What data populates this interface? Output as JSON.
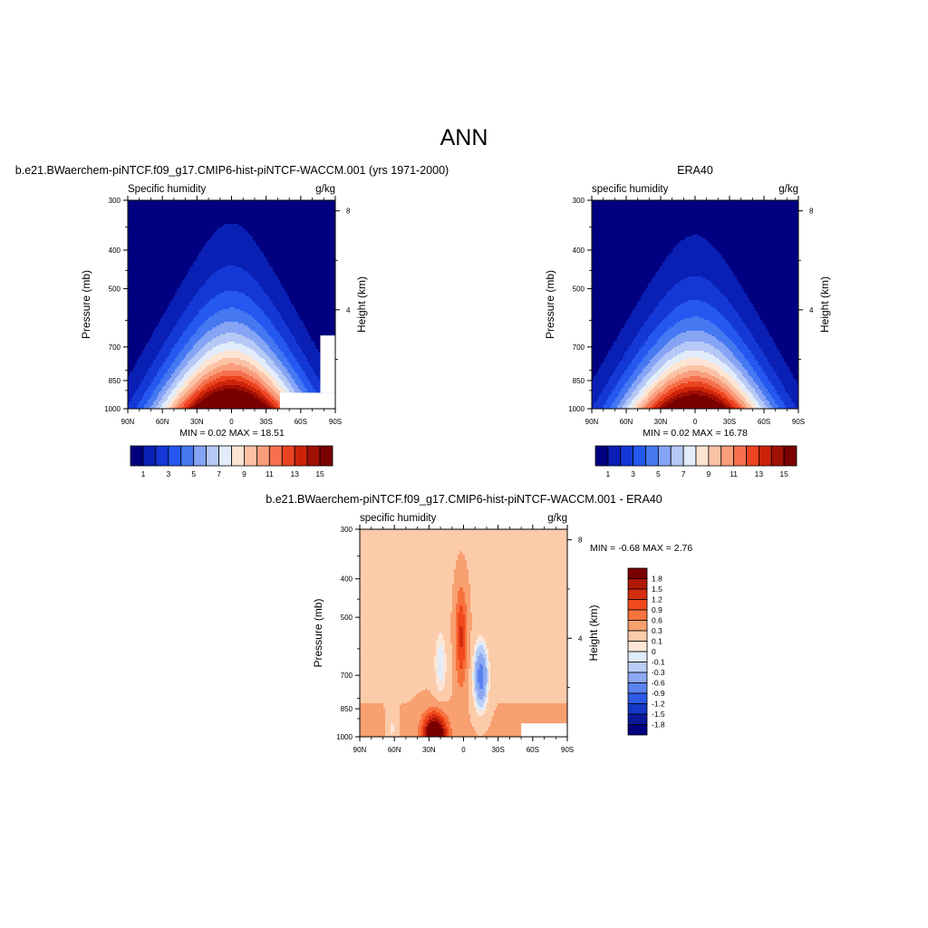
{
  "main_title": "ANN",
  "panels": [
    {
      "title": "b.e21.BWaerchem-piNTCF.f09_g17.CMIP6-hist-piNTCF-WACCM.001 (yrs 1971-2000)",
      "left_label": "Specific humidity",
      "right_label": "g/kg",
      "minmax": "MIN =   0.02  MAX =  18.51"
    },
    {
      "title": "ERA40",
      "left_label": "specific humidity",
      "right_label": "g/kg",
      "minmax": "MIN =   0.02  MAX =  16.78"
    },
    {
      "title": "b.e21.BWaerchem-piNTCF.f09_g17.CMIP6-hist-piNTCF-WACCM.001 - ERA40",
      "left_label": "specific humidity",
      "right_label": "g/kg",
      "minmax": "MIN =  -0.68  MAX =   2.76"
    }
  ],
  "axes": {
    "ylabel": "Pressure (mb)",
    "ylabel_right": "Height (km)",
    "pressure_ticks": [
      "300",
      "400",
      "500",
      "700",
      "850",
      "1000"
    ],
    "height_ticks": [
      "8",
      "4"
    ],
    "lat_ticks": [
      "90N",
      "60N",
      "30N",
      "0",
      "30S",
      "60S",
      "90S"
    ]
  },
  "colorbars": {
    "abs_labels": [
      "1",
      "3",
      "5",
      "7",
      "9",
      "11",
      "13",
      "15"
    ],
    "diff_labels": [
      "1.8",
      "1.5",
      "1.2",
      "0.9",
      "0.6",
      "0.3",
      "0.1",
      "0",
      "-0.1",
      "-0.3",
      "-0.6",
      "-0.9",
      "-1.2",
      "-1.5",
      "-1.8"
    ]
  },
  "colors": {
    "abs_scale": [
      "#000080",
      "#0a1fb4",
      "#1438d6",
      "#2458f0",
      "#4678f2",
      "#86a4f4",
      "#b6c8f6",
      "#e2ecfa",
      "#fde4d2",
      "#fbc2a6",
      "#f89e7c",
      "#f6704e",
      "#ec4420",
      "#cc240a",
      "#a01004",
      "#7a0000"
    ],
    "diff_scale": [
      "#7a0000",
      "#b01808",
      "#d42c10",
      "#f04a1c",
      "#f8723e",
      "#f8a070",
      "#fccbaa",
      "#fde6d6",
      "#e0ecfa",
      "#b8cdf6",
      "#8ca8f2",
      "#5a82ee",
      "#2e5ae6",
      "#1438c8",
      "#0a1a9a",
      "#000080"
    ]
  },
  "chart_data": [
    {
      "type": "heatmap",
      "title": "b.e21.BWaerchem-piNTCF.f09_g17.CMIP6-hist-piNTCF-WACCM.001 (yrs 1971-2000)",
      "subtitle_left": "Specific humidity",
      "units": "g/kg",
      "xlabel": "",
      "ylabel": "Pressure (mb)",
      "ylabel_right": "Height (km)",
      "x_range": [
        -90,
        90
      ],
      "y_range_mb": [
        300,
        1000
      ],
      "y_scale": "log",
      "min": 0.02,
      "max": 18.51,
      "contour_levels": [
        1,
        2,
        3,
        4,
        5,
        6,
        7,
        8,
        9,
        10,
        11,
        12,
        13,
        14,
        15
      ],
      "colorbar": "bottom"
    },
    {
      "type": "heatmap",
      "title": "ERA40",
      "subtitle_left": "specific humidity",
      "units": "g/kg",
      "xlabel": "",
      "ylabel": "Pressure (mb)",
      "ylabel_right": "Height (km)",
      "x_range": [
        -90,
        90
      ],
      "y_range_mb": [
        300,
        1000
      ],
      "y_scale": "log",
      "min": 0.02,
      "max": 16.78,
      "contour_levels": [
        1,
        2,
        3,
        4,
        5,
        6,
        7,
        8,
        9,
        10,
        11,
        12,
        13,
        14,
        15
      ],
      "colorbar": "bottom"
    },
    {
      "type": "heatmap",
      "title": "b.e21.BWaerchem-piNTCF.f09_g17.CMIP6-hist-piNTCF-WACCM.001 - ERA40",
      "subtitle_left": "specific humidity",
      "units": "g/kg",
      "xlabel": "",
      "ylabel": "Pressure (mb)",
      "ylabel_right": "Height (km)",
      "x_range": [
        -90,
        90
      ],
      "y_range_mb": [
        300,
        1000
      ],
      "y_scale": "log",
      "min": -0.68,
      "max": 2.76,
      "contour_levels": [
        -1.8,
        -1.5,
        -1.2,
        -0.9,
        -0.6,
        -0.3,
        -0.1,
        0,
        0.1,
        0.3,
        0.6,
        0.9,
        1.2,
        1.5,
        1.8
      ],
      "colorbar": "right"
    }
  ]
}
